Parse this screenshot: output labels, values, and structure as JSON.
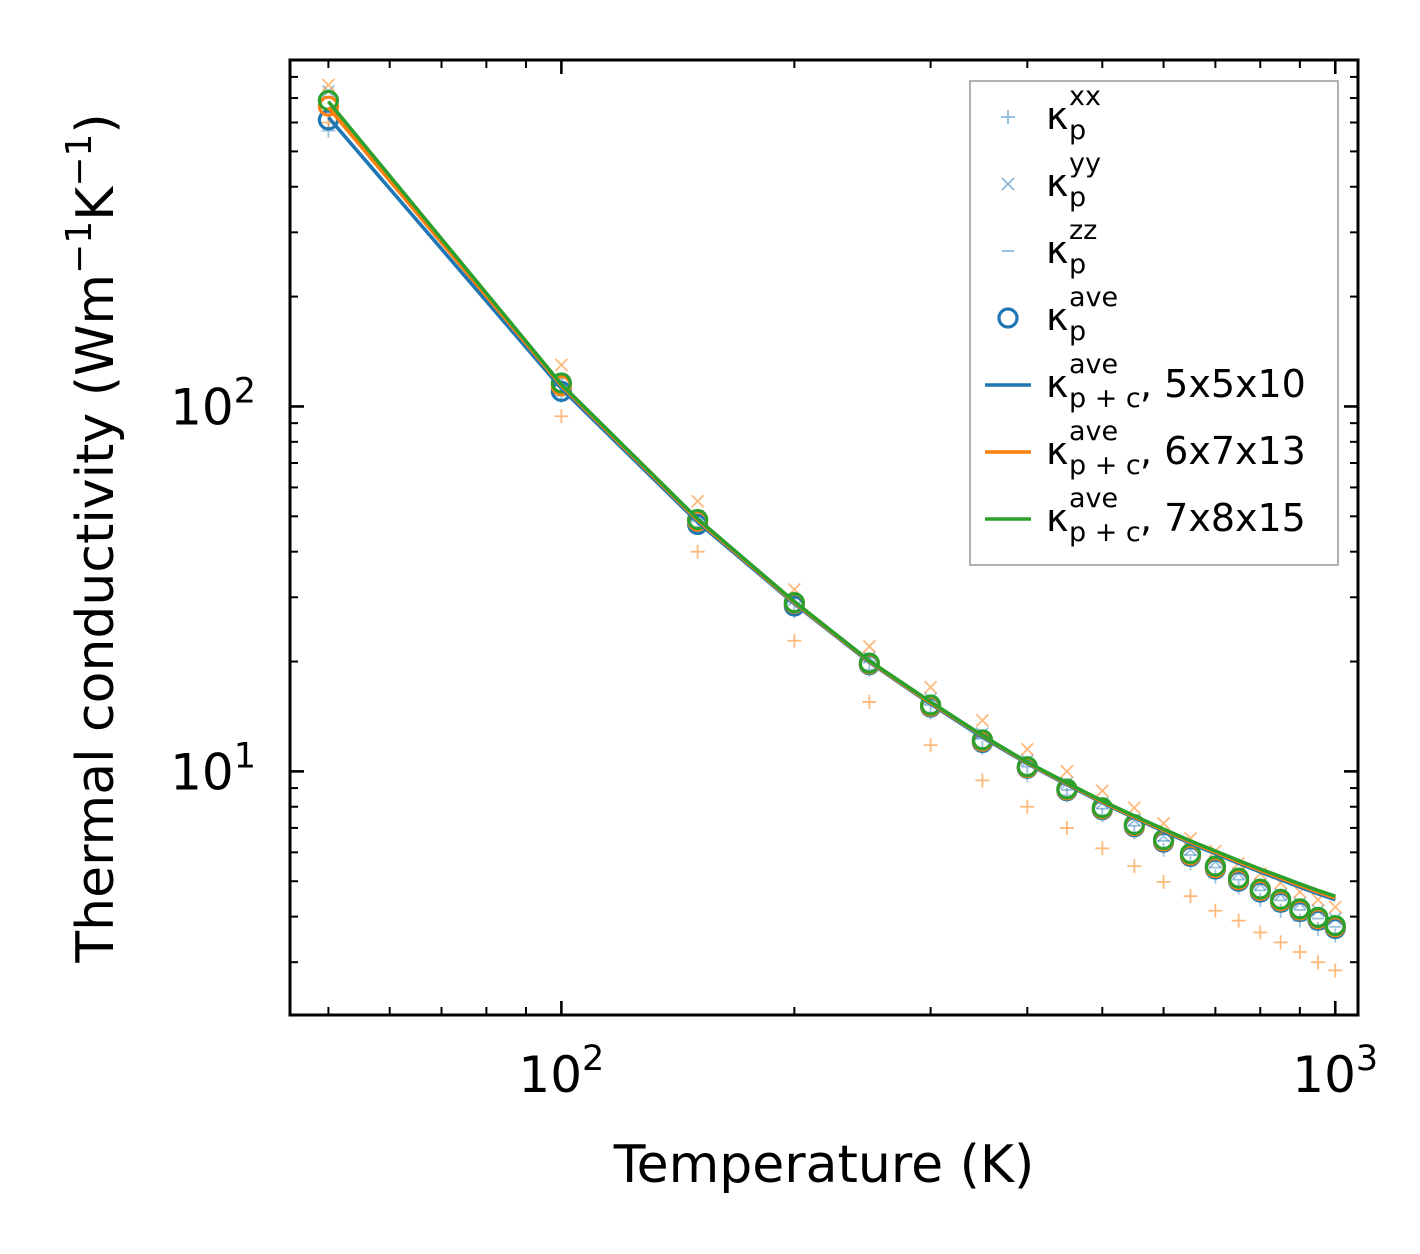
{
  "chart_data": {
    "type": "scatter",
    "xscale": "log",
    "yscale": "log",
    "xlim": [
      44.6,
      1070
    ],
    "ylim": [
      2.15,
      890
    ],
    "xlabel": "Temperature (K)",
    "ylabel": {
      "base": "Thermal conductivity (Wm",
      "exp1": "−1",
      "mid": "K",
      "exp2": "−1",
      "end": ")"
    },
    "xticks": [
      {
        "value": 100,
        "base": "10",
        "exp": "2"
      },
      {
        "value": 1000,
        "base": "10",
        "exp": "3"
      }
    ],
    "yticks": [
      {
        "value": 10,
        "base": "10",
        "exp": "1"
      },
      {
        "value": 100,
        "base": "10",
        "exp": "2"
      }
    ],
    "x": [
      50,
      100,
      150,
      200,
      250,
      300,
      350,
      400,
      450,
      500,
      550,
      600,
      650,
      700,
      750,
      800,
      850,
      900,
      950,
      1000
    ],
    "colors": {
      "blue": "#1f77b4",
      "orange": "#ff7f0e",
      "green": "#2ca02c"
    },
    "series": [
      {
        "name": "k_xx_blue",
        "marker": "plus",
        "color": "#1f77b4",
        "alpha": 0.45,
        "values": [
          570,
          107,
          46.5,
          27.5,
          19.0,
          14.5,
          11.6,
          9.8,
          8.6,
          7.6,
          6.8,
          6.1,
          5.6,
          5.15,
          4.8,
          4.45,
          4.15,
          3.9,
          3.7,
          3.55
        ]
      },
      {
        "name": "k_xx_orange",
        "marker": "plus",
        "color": "#ff7f0e",
        "alpha": 0.55,
        "values": [
          600,
          94,
          40,
          22.8,
          15.5,
          11.8,
          9.45,
          8.0,
          7.0,
          6.15,
          5.5,
          4.98,
          4.55,
          4.15,
          3.9,
          3.62,
          3.4,
          3.2,
          3.0,
          2.85
        ]
      },
      {
        "name": "k_yy_blue",
        "marker": "x",
        "color": "#1f77b4",
        "alpha": 0.45,
        "values": [
          730,
          118,
          50,
          29.5,
          20.5,
          15.8,
          12.7,
          10.7,
          9.3,
          8.2,
          7.35,
          6.65,
          6.1,
          5.65,
          5.25,
          4.9,
          4.6,
          4.35,
          4.15,
          3.95
        ]
      },
      {
        "name": "k_yy_orange",
        "marker": "x",
        "color": "#ff7f0e",
        "alpha": 0.55,
        "values": [
          760,
          130,
          55,
          31.5,
          22.0,
          17.0,
          13.8,
          11.5,
          10.0,
          8.85,
          7.95,
          7.2,
          6.55,
          6.05,
          5.6,
          5.25,
          4.95,
          4.68,
          4.45,
          4.25
        ]
      },
      {
        "name": "k_zz_blue",
        "marker": "dash",
        "color": "#1f77b4",
        "alpha": 0.45,
        "values": [
          640,
          115,
          49,
          29,
          20,
          15.2,
          12.3,
          10.3,
          8.9,
          7.9,
          7.1,
          6.45,
          5.9,
          5.45,
          5.05,
          4.72,
          4.43,
          4.17,
          3.95,
          3.75
        ]
      },
      {
        "name": "k_ave_blue",
        "marker": "circle",
        "color": "#1f77b4",
        "alpha": 1,
        "values": [
          610,
          110,
          47.5,
          28.4,
          19.6,
          15.0,
          12.0,
          10.2,
          8.85,
          7.85,
          7.05,
          6.4,
          5.85,
          5.4,
          5.0,
          4.67,
          4.38,
          4.13,
          3.91,
          3.71
        ]
      },
      {
        "name": "k_ave_orange",
        "marker": "circle",
        "color": "#ff7f0e",
        "alpha": 1,
        "values": [
          665,
          114,
          48.5,
          28.9,
          19.7,
          15.1,
          12.1,
          10.25,
          8.9,
          7.9,
          7.1,
          6.45,
          5.9,
          5.45,
          5.05,
          4.72,
          4.42,
          4.17,
          3.95,
          3.75
        ]
      },
      {
        "name": "k_ave_green",
        "marker": "circle",
        "color": "#2ca02c",
        "alpha": 1,
        "values": [
          690,
          116,
          49,
          29.0,
          19.8,
          15.2,
          12.2,
          10.3,
          8.95,
          7.95,
          7.15,
          6.5,
          5.95,
          5.5,
          5.1,
          4.76,
          4.46,
          4.2,
          3.98,
          3.78
        ]
      },
      {
        "name": "k_pc_5x5x10",
        "marker": "line",
        "color": "#1f77b4",
        "alpha": 1,
        "values": [
          620,
          112,
          48.2,
          28.8,
          19.9,
          15.3,
          12.4,
          10.5,
          9.2,
          8.2,
          7.45,
          6.85,
          6.35,
          5.95,
          5.6,
          5.3,
          5.05,
          4.82,
          4.62,
          4.45
        ]
      },
      {
        "name": "k_pc_6x7x13",
        "marker": "line",
        "color": "#ff7f0e",
        "alpha": 1,
        "values": [
          660,
          114,
          48.8,
          29.0,
          20.0,
          15.4,
          12.5,
          10.55,
          9.25,
          8.25,
          7.5,
          6.9,
          6.4,
          6.0,
          5.65,
          5.35,
          5.1,
          4.87,
          4.67,
          4.5
        ]
      },
      {
        "name": "k_pc_7x8x15",
        "marker": "line",
        "color": "#2ca02c",
        "alpha": 1,
        "values": [
          685,
          115,
          49.2,
          29.2,
          20.1,
          15.5,
          12.55,
          10.6,
          9.3,
          8.3,
          7.55,
          6.95,
          6.45,
          6.05,
          5.7,
          5.4,
          5.15,
          4.92,
          4.72,
          4.55
        ]
      }
    ],
    "legend": {
      "position": "top-right",
      "entries": [
        {
          "marker": "plus",
          "color": "#1f77b4",
          "alpha": 0.5,
          "label": "κ",
          "sub": "p",
          "sup": "xx",
          "suffix": ""
        },
        {
          "marker": "x",
          "color": "#1f77b4",
          "alpha": 0.5,
          "label": "κ",
          "sub": "p",
          "sup": "yy",
          "suffix": ""
        },
        {
          "marker": "dash",
          "color": "#1f77b4",
          "alpha": 0.5,
          "label": "κ",
          "sub": "p",
          "sup": "zz",
          "suffix": ""
        },
        {
          "marker": "circle",
          "color": "#1f77b4",
          "alpha": 1,
          "label": "κ",
          "sub": "p",
          "sup": "ave",
          "suffix": ""
        },
        {
          "marker": "line",
          "color": "#1f77b4",
          "alpha": 1,
          "label": "κ",
          "sub": "p + c",
          "sup": "ave",
          "suffix": ", 5x5x10"
        },
        {
          "marker": "line",
          "color": "#ff7f0e",
          "alpha": 1,
          "label": "κ",
          "sub": "p + c",
          "sup": "ave",
          "suffix": ", 6x7x13"
        },
        {
          "marker": "line",
          "color": "#2ca02c",
          "alpha": 1,
          "label": "κ",
          "sub": "p + c",
          "sup": "ave",
          "suffix": ", 7x8x15"
        }
      ]
    }
  }
}
